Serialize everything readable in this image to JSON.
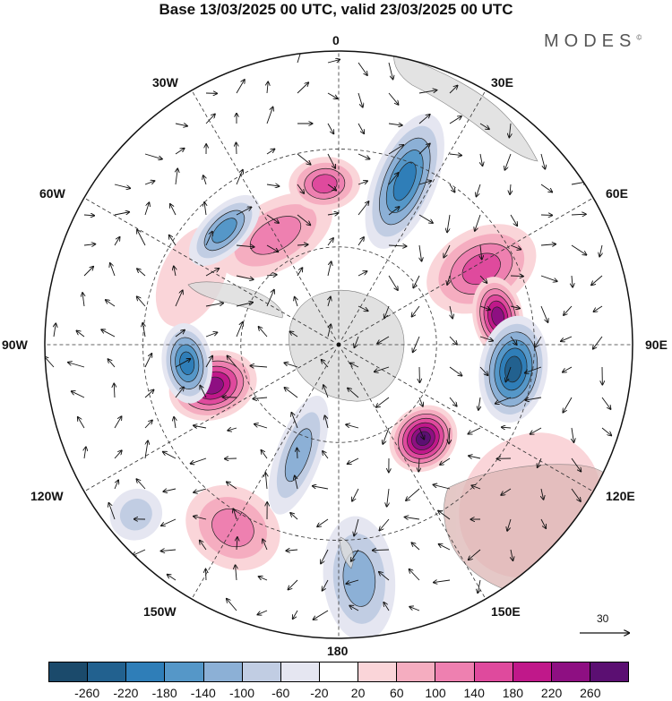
{
  "title": "Base 13/03/2025 00 UTC, valid 23/03/2025 00 UTC",
  "brand": "MODES",
  "brand_mark": "©",
  "longitude_labels": {
    "lon_0": "0",
    "lon_30e": "30E",
    "lon_60e": "60E",
    "lon_90e": "90E",
    "lon_120e": "120E",
    "lon_150e": "150E",
    "lon_180": "180",
    "lon_150w": "150W",
    "lon_120w": "120W",
    "lon_90w": "90W",
    "lon_60w": "60W",
    "lon_30w": "30W"
  },
  "vector_scale": {
    "label": "30"
  },
  "colorbar": {
    "ticks": [
      "-260",
      "-220",
      "-180",
      "-140",
      "-100",
      "-60",
      "-20",
      "20",
      "60",
      "100",
      "140",
      "180",
      "220",
      "260"
    ],
    "colors": [
      "#1b4a6b",
      "#22618f",
      "#2f7eb8",
      "#5597c8",
      "#8cb0d6",
      "#c1cde3",
      "#e5e6f1",
      "#ffffff",
      "#fad5d9",
      "#f5adc0",
      "#ee80b0",
      "#df4a9d",
      "#c0188a",
      "#8e0f82",
      "#5b0f72"
    ]
  },
  "features": {
    "positive": [
      {
        "lon": -30,
        "colat": 0.43,
        "rx": 70,
        "ry": 38,
        "level": 3
      },
      {
        "lon": -5,
        "colat": 0.55,
        "rx": 40,
        "ry": 30,
        "level": 4
      },
      {
        "lon": 62,
        "colat": 0.55,
        "rx": 45,
        "ry": 65,
        "level": 4
      },
      {
        "lon": 80,
        "colat": 0.55,
        "rx": 45,
        "ry": 28,
        "level": 6
      },
      {
        "lon": -108,
        "colat": 0.45,
        "rx": 38,
        "ry": 50,
        "level": 6
      },
      {
        "lon": 138,
        "colat": 0.43,
        "rx": 40,
        "ry": 35,
        "level": 7
      },
      {
        "lon": -150,
        "colat": 0.72,
        "rx": 55,
        "ry": 45,
        "level": 3
      },
      {
        "lon": -65,
        "colat": 0.55,
        "rx": 60,
        "ry": 35,
        "level": 1
      },
      {
        "lon": 130,
        "colat": 0.85,
        "rx": 85,
        "ry": 75,
        "level": 1
      }
    ],
    "negative": [
      {
        "lon": 22,
        "colat": 0.6,
        "rx": 35,
        "ry": 80,
        "level": 5
      },
      {
        "lon": -45,
        "colat": 0.55,
        "rx": 50,
        "ry": 25,
        "level": 4
      },
      {
        "lon": -97,
        "colat": 0.52,
        "rx": 45,
        "ry": 28,
        "level": 5
      },
      {
        "lon": 98,
        "colat": 0.6,
        "rx": 60,
        "ry": 38,
        "level": 6
      },
      {
        "lon": 175,
        "colat": 0.8,
        "rx": 40,
        "ry": 70,
        "level": 3
      },
      {
        "lon": -160,
        "colat": 0.4,
        "rx": 25,
        "ry": 70,
        "level": 3
      },
      {
        "lon": -130,
        "colat": 0.9,
        "rx": 28,
        "ry": 30,
        "level": 2
      }
    ]
  }
}
